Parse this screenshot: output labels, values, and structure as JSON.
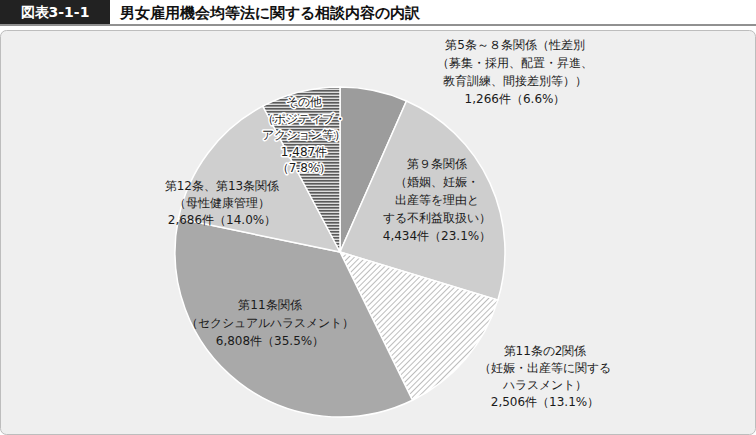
{
  "chart_data": {
    "type": "pie",
    "figure_label": "図表3-1-1",
    "title": "男女雇用機会均等法に関する相談内容の内訳",
    "categories": [
      "第5条～８条関係（性差別\n（募集・採用、配置・昇進、\n教育訓練、間接差別等））",
      "第９条関係\n（婚姻、妊娠・\n出産等を理由と\nする不利益取扱い）",
      "第11条の2関係\n（妊娠・出産等に関する\nハラスメント）",
      "第11条関係\n（セクシュアルハラスメント）",
      "第12条、第13条関係\n（母性健康管理）",
      "その他\n（ポジティブ・\nアクション等）"
    ],
    "values": [
      1266,
      4434,
      2506,
      6808,
      2686,
      1487
    ],
    "value_labels": [
      "1,266件（6.6%）",
      "4,434件（23.1%）",
      "2,506件（13.1%）",
      "6,808件（35.5%）",
      "2,686件（14.0%）",
      "1,487件\n（7.8%）"
    ],
    "colors": [
      "#9c9c9c",
      "#cecece",
      "#9a9a9a",
      "#a9a9a9",
      "#cfcfcf",
      "#5a5a5a"
    ],
    "data_labels": true
  }
}
